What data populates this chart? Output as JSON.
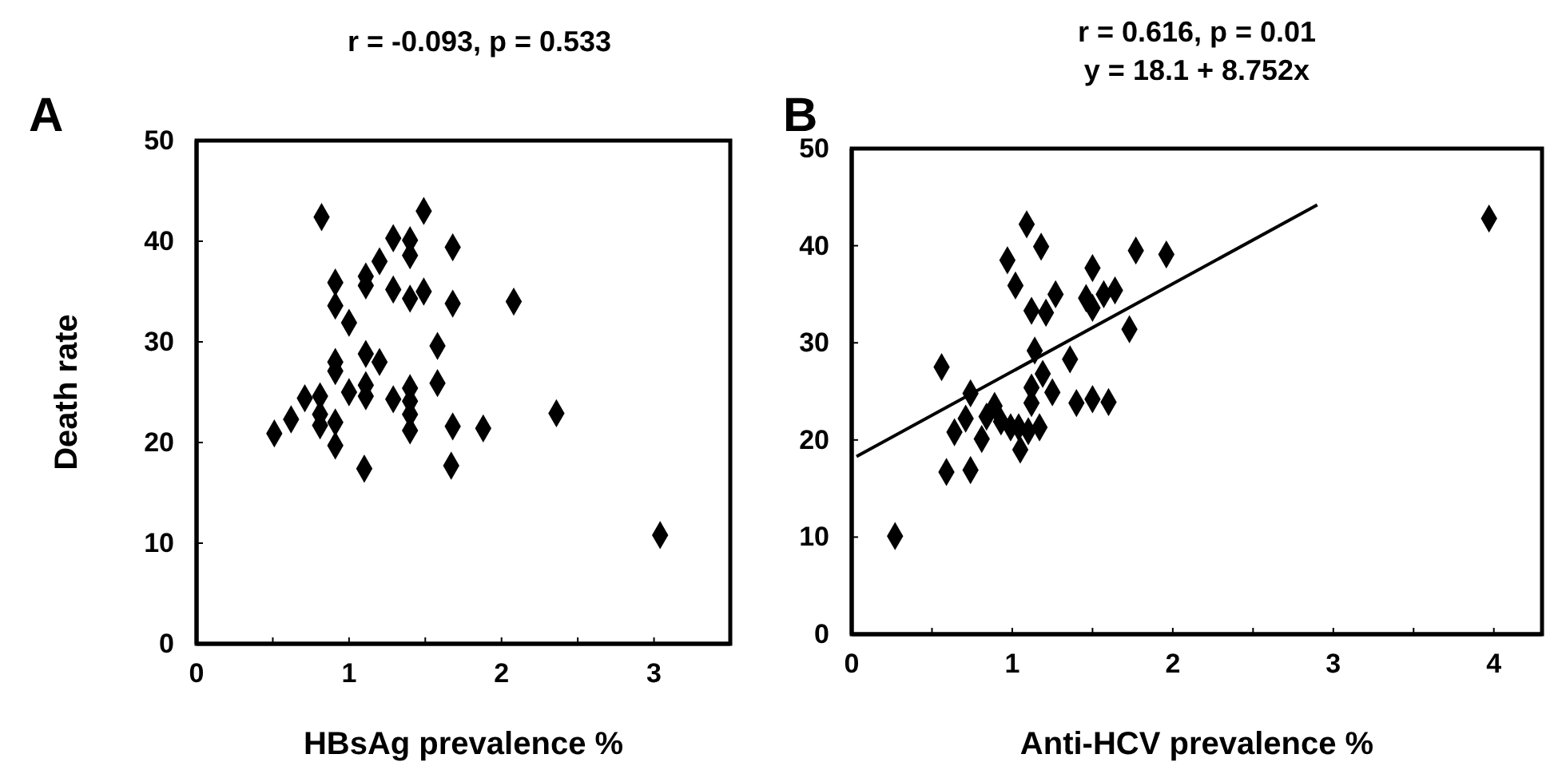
{
  "chart_data": [
    {
      "type": "scatter",
      "title": "A",
      "subtitle": "r = -0.093, p = 0.533",
      "xlabel": "HBsAg prevalence %",
      "ylabel": "Death rate",
      "marker": "diamond",
      "grid": false,
      "xlim": [
        0,
        3.5
      ],
      "xticks": [
        0,
        {
          "value": 0.5,
          "label": null
        },
        1,
        {
          "value": 1.5,
          "label": null
        },
        2,
        {
          "value": 2.5,
          "label": null
        },
        3
      ],
      "ylim": [
        0,
        50
      ],
      "yticks": [
        0,
        10,
        20,
        30,
        40,
        50
      ],
      "series": [
        {
          "color": "#000000",
          "x": [
            0.82,
            1.49,
            1.29,
            1.4,
            1.4,
            1.68,
            1.2,
            1.11,
            1.11,
            0.91,
            0.91,
            1.29,
            1.4,
            1.49,
            1.68,
            2.08,
            1.0,
            1.58,
            1.11,
            1.2,
            0.91,
            0.91,
            1.58,
            0.71,
            0.81,
            1.0,
            1.11,
            1.11,
            1.29,
            1.4,
            1.4,
            1.4,
            1.4,
            0.81,
            0.81,
            0.91,
            0.62,
            0.51,
            0.91,
            1.68,
            1.88,
            2.36,
            1.1,
            1.67,
            3.04
          ],
          "values": [
            42.4,
            43.0,
            40.3,
            40.1,
            38.6,
            39.4,
            38.0,
            36.5,
            35.6,
            35.9,
            33.6,
            35.2,
            34.3,
            35.0,
            33.8,
            34.0,
            31.9,
            29.6,
            28.8,
            28.0,
            28.0,
            27.1,
            25.9,
            24.4,
            24.6,
            25.0,
            25.7,
            24.6,
            24.3,
            25.4,
            24.1,
            22.8,
            21.2,
            22.8,
            21.7,
            22.0,
            22.3,
            20.9,
            19.7,
            21.6,
            21.4,
            22.9,
            17.4,
            17.7,
            10.8
          ]
        }
      ]
    },
    {
      "type": "scatter",
      "title": "B",
      "subtitle": "r = 0.616, p = 0.01\ny = 18.1 + 8.752x",
      "xlabel": "Anti-HCV prevalence %",
      "marker": "diamond",
      "grid": false,
      "xlim": [
        0,
        4.3
      ],
      "xticks": [
        0,
        {
          "value": 0.5,
          "label": null
        },
        1,
        {
          "value": 1.5,
          "label": null
        },
        2,
        {
          "value": 2.5,
          "label": null
        },
        3,
        {
          "value": 3.5,
          "label": null
        },
        4
      ],
      "ylim": [
        0,
        50
      ],
      "yticks": [
        0,
        10,
        20,
        30,
        40,
        50
      ],
      "series": [
        {
          "color": "#000000",
          "x": [
            0.27,
            0.56,
            0.59,
            0.74,
            0.64,
            0.71,
            0.74,
            0.81,
            0.84,
            0.89,
            0.93,
            0.99,
            1.05,
            1.04,
            1.1,
            1.17,
            1.12,
            1.12,
            1.19,
            1.14,
            1.25,
            1.36,
            1.4,
            1.5,
            1.6,
            1.73,
            0.97,
            1.02,
            1.09,
            1.18,
            1.12,
            1.21,
            1.27,
            1.46,
            1.5,
            1.57,
            1.64,
            1.5,
            1.77,
            1.96,
            3.97
          ],
          "values": [
            10.1,
            27.5,
            16.7,
            16.9,
            20.8,
            22.2,
            24.8,
            20.1,
            22.4,
            23.5,
            21.9,
            21.3,
            19.0,
            21.3,
            20.9,
            21.3,
            23.8,
            25.4,
            26.8,
            29.2,
            24.9,
            28.3,
            23.8,
            24.2,
            23.9,
            31.4,
            38.5,
            35.9,
            42.2,
            39.9,
            33.3,
            33.1,
            35.0,
            34.6,
            33.6,
            35.0,
            35.4,
            37.7,
            39.5,
            39.1,
            42.8
          ]
        },
        {
          "type": "line",
          "color": "#000000",
          "marker": "none",
          "line_style": "solid",
          "x": [
            0.03,
            2.9
          ],
          "values": [
            18.3,
            44.2
          ]
        }
      ]
    }
  ]
}
